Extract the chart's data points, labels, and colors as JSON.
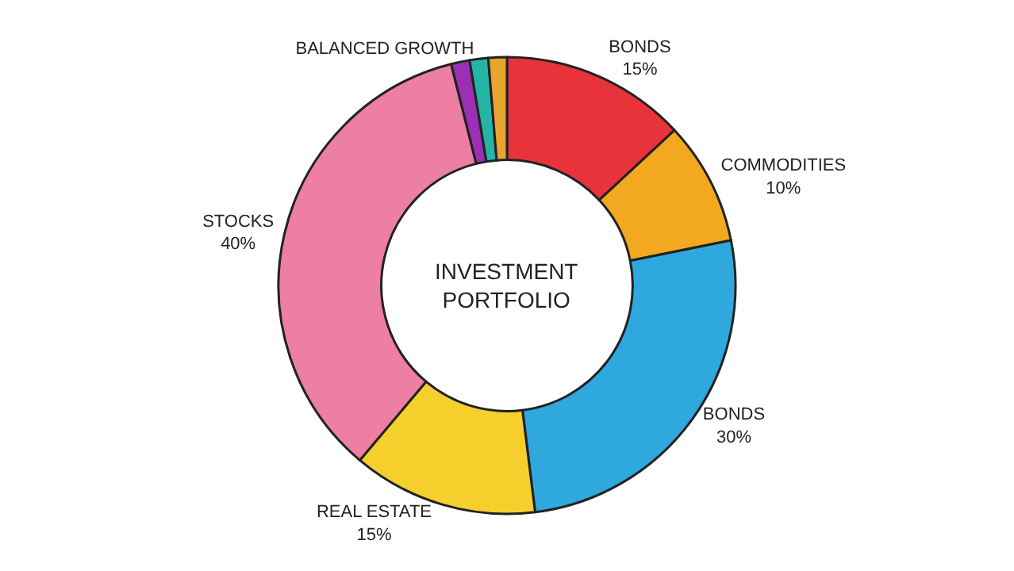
{
  "chart_data": {
    "type": "donut",
    "title": "INVESTMENT PORTFOLIO",
    "categories": [
      "BONDS",
      "COMMODITIES",
      "BONDS",
      "REAL ESTATE",
      "STOCKS",
      null,
      "BALANCED GROWTH",
      null
    ],
    "values": [
      15,
      10,
      30,
      15,
      40,
      1.5,
      1.5,
      1.5
    ],
    "value_labels": [
      "15%",
      "10%",
      "30%",
      "15%",
      "40%",
      null,
      null,
      null
    ],
    "colors": [
      "#e8333a",
      "#f3a91f",
      "#2fa8de",
      "#f5cf2c",
      "#ec7fa2",
      "#9b2fb5",
      "#25b5a5",
      "#e8a431"
    ],
    "legend": false
  }
}
